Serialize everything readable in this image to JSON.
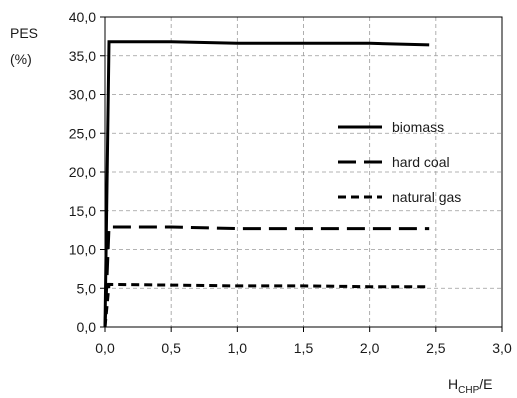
{
  "chart_data": {
    "type": "line",
    "title": "",
    "ylabel_lines": [
      "PES",
      "(%)"
    ],
    "xlabel": {
      "base": "H",
      "sub": "CHP",
      "suffix": "/E"
    },
    "xlim": [
      0,
      3
    ],
    "ylim": [
      0,
      40
    ],
    "x_ticks": [
      "0,0",
      "0,5",
      "1,0",
      "1,5",
      "2,0",
      "2,5",
      "3,0"
    ],
    "y_ticks": [
      "0,0",
      "5,0",
      "10,0",
      "15,0",
      "20,0",
      "25,0",
      "30,0",
      "35,0",
      "40,0"
    ],
    "grid": true,
    "legend_position": "right",
    "series": [
      {
        "name": "biomass",
        "line_style": "solid",
        "color": "#000000",
        "x": [
          0.0,
          0.03,
          0.5,
          1.0,
          1.5,
          2.0,
          2.45
        ],
        "y": [
          0.0,
          36.8,
          36.8,
          36.6,
          36.6,
          36.6,
          36.4
        ]
      },
      {
        "name": "hard coal",
        "line_style": "long-dash",
        "color": "#000000",
        "x": [
          0.0,
          0.03,
          0.5,
          1.0,
          1.5,
          2.0,
          2.45
        ],
        "y": [
          0.0,
          12.9,
          12.9,
          12.7,
          12.7,
          12.7,
          12.7
        ]
      },
      {
        "name": "natural gas",
        "line_style": "short-dash",
        "color": "#000000",
        "x": [
          0.0,
          0.03,
          0.5,
          1.0,
          1.5,
          2.0,
          2.45
        ],
        "y": [
          0.0,
          5.5,
          5.4,
          5.3,
          5.3,
          5.2,
          5.2
        ]
      }
    ]
  }
}
